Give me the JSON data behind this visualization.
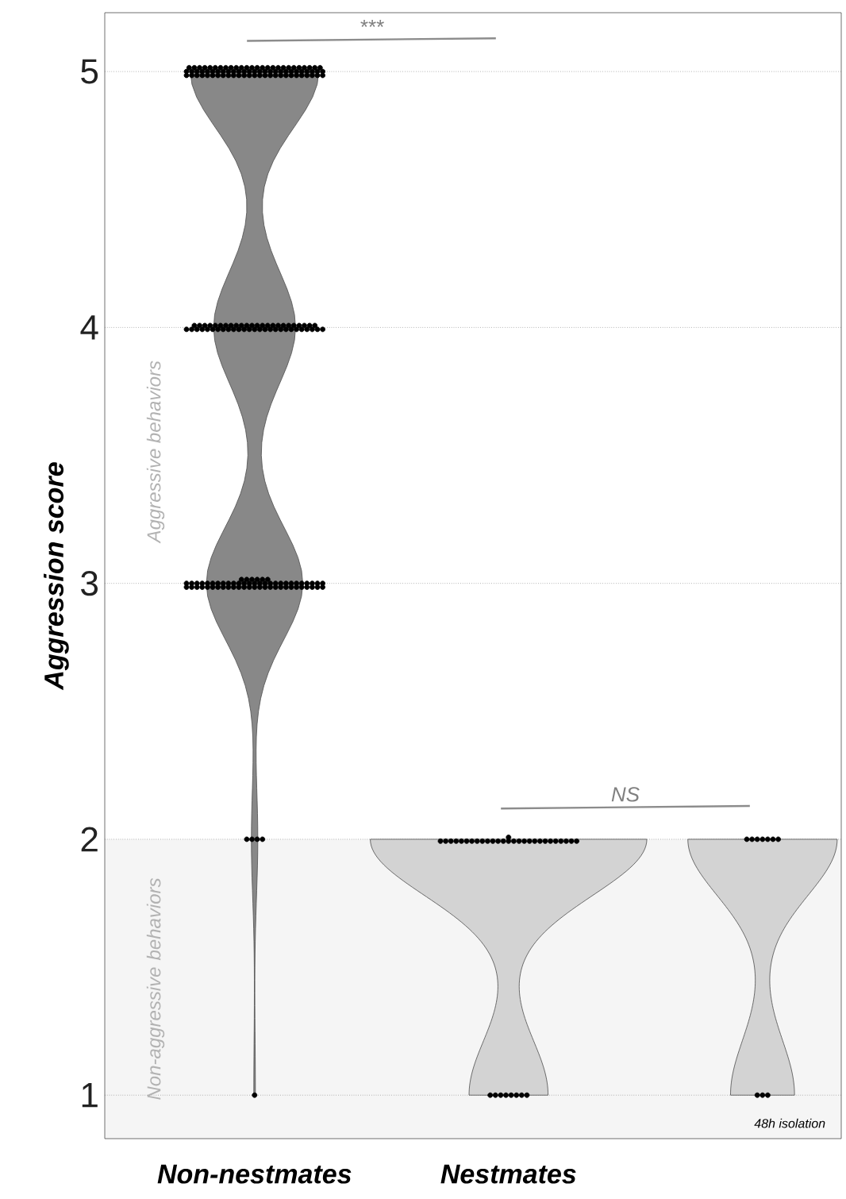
{
  "chart_data": {
    "type": "scatter",
    "ylabel": "Aggression score",
    "categories": [
      "Non-nestmates",
      "Nestmates",
      "48h isolation"
    ],
    "series": [
      {
        "color": "#000000",
        "x": [
          "Non-nestmates",
          "Non-nestmates",
          "Non-nestmates",
          "Non-nestmates",
          "Non-nestmates",
          "Non-nestmates",
          "Non-nestmates",
          "Non-nestmates",
          "Non-nestmates",
          "Non-nestmates",
          "Non-nestmates",
          "Non-nestmates",
          "Non-nestmates",
          "Non-nestmates",
          "Non-nestmates",
          "Non-nestmates",
          "Non-nestmates",
          "Non-nestmates",
          "Non-nestmates",
          "Non-nestmates",
          "Non-nestmates",
          "Non-nestmates",
          "Non-nestmates",
          "Non-nestmates",
          "Non-nestmates",
          "Non-nestmates",
          "Non-nestmates",
          "Non-nestmates",
          "Non-nestmates",
          "Non-nestmates",
          "Non-nestmates",
          "Non-nestmates",
          "Non-nestmates",
          "Non-nestmates",
          "Non-nestmates",
          "Non-nestmates",
          "Non-nestmates",
          "Non-nestmates",
          "Non-nestmates",
          "Non-nestmates",
          "Non-nestmates",
          "Non-nestmates",
          "Non-nestmates",
          "Non-nestmates",
          "Non-nestmates",
          "Non-nestmates",
          "Non-nestmates",
          "Non-nestmates",
          "Non-nestmates",
          "Non-nestmates",
          "Non-nestmates",
          "Non-nestmates",
          "Non-nestmates",
          "Non-nestmates",
          "Non-nestmates",
          "Non-nestmates",
          "Non-nestmates",
          "Non-nestmates",
          "Non-nestmates",
          "Non-nestmates",
          "Non-nestmates",
          "Non-nestmates",
          "Non-nestmates",
          "Non-nestmates",
          "Non-nestmates",
          "Non-nestmates",
          "Non-nestmates",
          "Non-nestmates",
          "Non-nestmates",
          "Non-nestmates",
          "Non-nestmates",
          "Non-nestmates",
          "Non-nestmates",
          "Non-nestmates",
          "Non-nestmates",
          "Non-nestmates",
          "Non-nestmates",
          "Non-nestmates",
          "Non-nestmates",
          "Non-nestmates",
          "Non-nestmates",
          "Non-nestmates",
          "Non-nestmates",
          "Non-nestmates",
          "Non-nestmates",
          "Non-nestmates",
          "Non-nestmates",
          "Non-nestmates",
          "Non-nestmates",
          "Non-nestmates",
          "Non-nestmates",
          "Non-nestmates",
          "Non-nestmates",
          "Non-nestmates",
          "Non-nestmates",
          "Non-nestmates",
          "Non-nestmates",
          "Non-nestmates",
          "Non-nestmates",
          "Non-nestmates",
          "Non-nestmates",
          "Non-nestmates",
          "Non-nestmates",
          "Non-nestmates",
          "Non-nestmates",
          "Non-nestmates",
          "Non-nestmates",
          "Non-nestmates",
          "Non-nestmates",
          "Non-nestmates",
          "Non-nestmates",
          "Non-nestmates",
          "Non-nestmates",
          "Non-nestmates",
          "Non-nestmates",
          "Non-nestmates",
          "Non-nestmates",
          "Non-nestmates",
          "Non-nestmates",
          "Non-nestmates",
          "Non-nestmates",
          "Non-nestmates",
          "Non-nestmates",
          "Non-nestmates",
          "Non-nestmates",
          "Non-nestmates",
          "Non-nestmates",
          "Non-nestmates",
          "Non-nestmates",
          "Non-nestmates",
          "Non-nestmates",
          "Non-nestmates",
          "Non-nestmates",
          "Non-nestmates",
          "Non-nestmates",
          "Non-nestmates",
          "Non-nestmates",
          "Non-nestmates",
          "Non-nestmates",
          "Non-nestmates",
          "Non-nestmates",
          "Non-nestmates",
          "Non-nestmates",
          "Non-nestmates",
          "Non-nestmates",
          "Non-nestmates",
          "Non-nestmates",
          "Non-nestmates",
          "Non-nestmates",
          "Non-nestmates",
          "Non-nestmates",
          "Non-nestmates",
          "Non-nestmates",
          "Non-nestmates",
          "Non-nestmates",
          "Non-nestmates",
          "Non-nestmates",
          "Non-nestmates",
          "Non-nestmates",
          "Non-nestmates",
          "Non-nestmates",
          "Non-nestmates",
          "Non-nestmates",
          "Non-nestmates",
          "Non-nestmates",
          "Non-nestmates",
          "Non-nestmates",
          "Non-nestmates",
          "Non-nestmates",
          "Non-nestmates",
          "Non-nestmates",
          "Non-nestmates",
          "Non-nestmates",
          "Non-nestmates",
          "Non-nestmates",
          "Non-nestmates",
          "Non-nestmates",
          "Non-nestmates",
          "Non-nestmates",
          "Non-nestmates",
          "Non-nestmates",
          "Non-nestmates",
          "Non-nestmates",
          "Non-nestmates",
          "Non-nestmates",
          "Non-nestmates",
          "Non-nestmates",
          "Non-nestmates",
          "Non-nestmates",
          "Non-nestmates",
          "Non-nestmates",
          "Non-nestmates",
          "Non-nestmates",
          "Non-nestmates",
          "Non-nestmates",
          "Non-nestmates"
        ],
        "values": [
          5,
          5,
          5,
          5,
          5,
          5,
          5,
          5,
          5,
          5,
          5,
          5,
          5,
          5,
          5,
          5,
          5,
          5,
          5,
          5,
          5,
          5,
          5,
          5,
          5,
          5,
          5,
          5,
          5,
          5,
          5,
          5,
          5,
          5,
          5,
          5,
          5,
          5,
          5,
          5,
          5,
          5,
          5,
          5,
          5,
          5,
          5,
          5,
          5,
          5,
          5,
          5,
          5,
          5,
          5,
          5,
          5,
          5,
          5,
          5,
          5,
          5,
          5,
          5,
          5,
          5,
          5,
          5,
          5,
          5,
          5,
          5,
          5,
          5,
          5,
          5,
          5,
          5,
          5,
          5,
          4,
          4,
          4,
          4,
          4,
          4,
          4,
          4,
          4,
          4,
          4,
          4,
          4,
          4,
          4,
          4,
          4,
          4,
          4,
          4,
          4,
          4,
          4,
          4,
          4,
          4,
          4,
          4,
          4,
          4,
          4,
          4,
          4,
          4,
          4,
          4,
          4,
          4,
          4,
          4,
          4,
          4,
          4,
          4,
          4,
          4,
          4,
          4,
          4,
          4,
          4,
          3,
          3,
          3,
          3,
          3,
          3,
          3,
          3,
          3,
          3,
          3,
          3,
          3,
          3,
          3,
          3,
          3,
          3,
          3,
          3,
          3,
          3,
          3,
          3,
          3,
          3,
          3,
          3,
          3,
          3,
          3,
          3,
          3,
          3,
          3,
          3,
          3,
          3,
          3,
          3,
          3,
          3,
          3,
          3,
          3,
          3,
          3,
          3,
          3,
          3,
          3,
          3,
          3,
          3,
          3,
          3,
          3,
          3,
          3,
          3,
          2,
          2,
          2,
          2,
          1
        ]
      },
      {
        "color": "#000000",
        "x": [
          "Nestmates",
          "Nestmates",
          "Nestmates",
          "Nestmates",
          "Nestmates",
          "Nestmates",
          "Nestmates",
          "Nestmates",
          "Nestmates",
          "Nestmates",
          "Nestmates",
          "Nestmates",
          "Nestmates",
          "Nestmates",
          "Nestmates",
          "Nestmates",
          "Nestmates",
          "Nestmates",
          "Nestmates",
          "Nestmates",
          "Nestmates",
          "Nestmates",
          "Nestmates",
          "Nestmates",
          "Nestmates",
          "Nestmates",
          "Nestmates",
          "Nestmates",
          "Nestmates",
          "Nestmates",
          "Nestmates",
          "Nestmates",
          "Nestmates",
          "Nestmates",
          "Nestmates",
          "Nestmates"
        ],
        "values": [
          2,
          2,
          2,
          2,
          2,
          2,
          2,
          2,
          2,
          2,
          2,
          2,
          2,
          2,
          2,
          2,
          2,
          2,
          2,
          2,
          2,
          2,
          2,
          2,
          2,
          2,
          2,
          2,
          1,
          1,
          1,
          1,
          1,
          1,
          1,
          1
        ]
      },
      {
        "color": "#000000",
        "x": [
          "48h isolation",
          "48h isolation",
          "48h isolation",
          "48h isolation",
          "48h isolation",
          "48h isolation",
          "48h isolation",
          "48h isolation",
          "48h isolation",
          "48h isolation"
        ],
        "values": [
          2,
          2,
          2,
          2,
          2,
          2,
          2,
          1,
          1,
          1
        ]
      }
    ],
    "ylim": [
      0.83,
      5.23
    ],
    "yticks": [
      1,
      2,
      3,
      4,
      5
    ],
    "grid": "y",
    "marker": "circle",
    "bands": [
      {
        "axis": "y",
        "from": 0.83,
        "to": 2,
        "label": "Non-aggressive behaviors",
        "color": "#f5f5f5"
      }
    ],
    "annotations": [
      "***",
      "NS",
      "Aggressive behaviors"
    ]
  }
}
